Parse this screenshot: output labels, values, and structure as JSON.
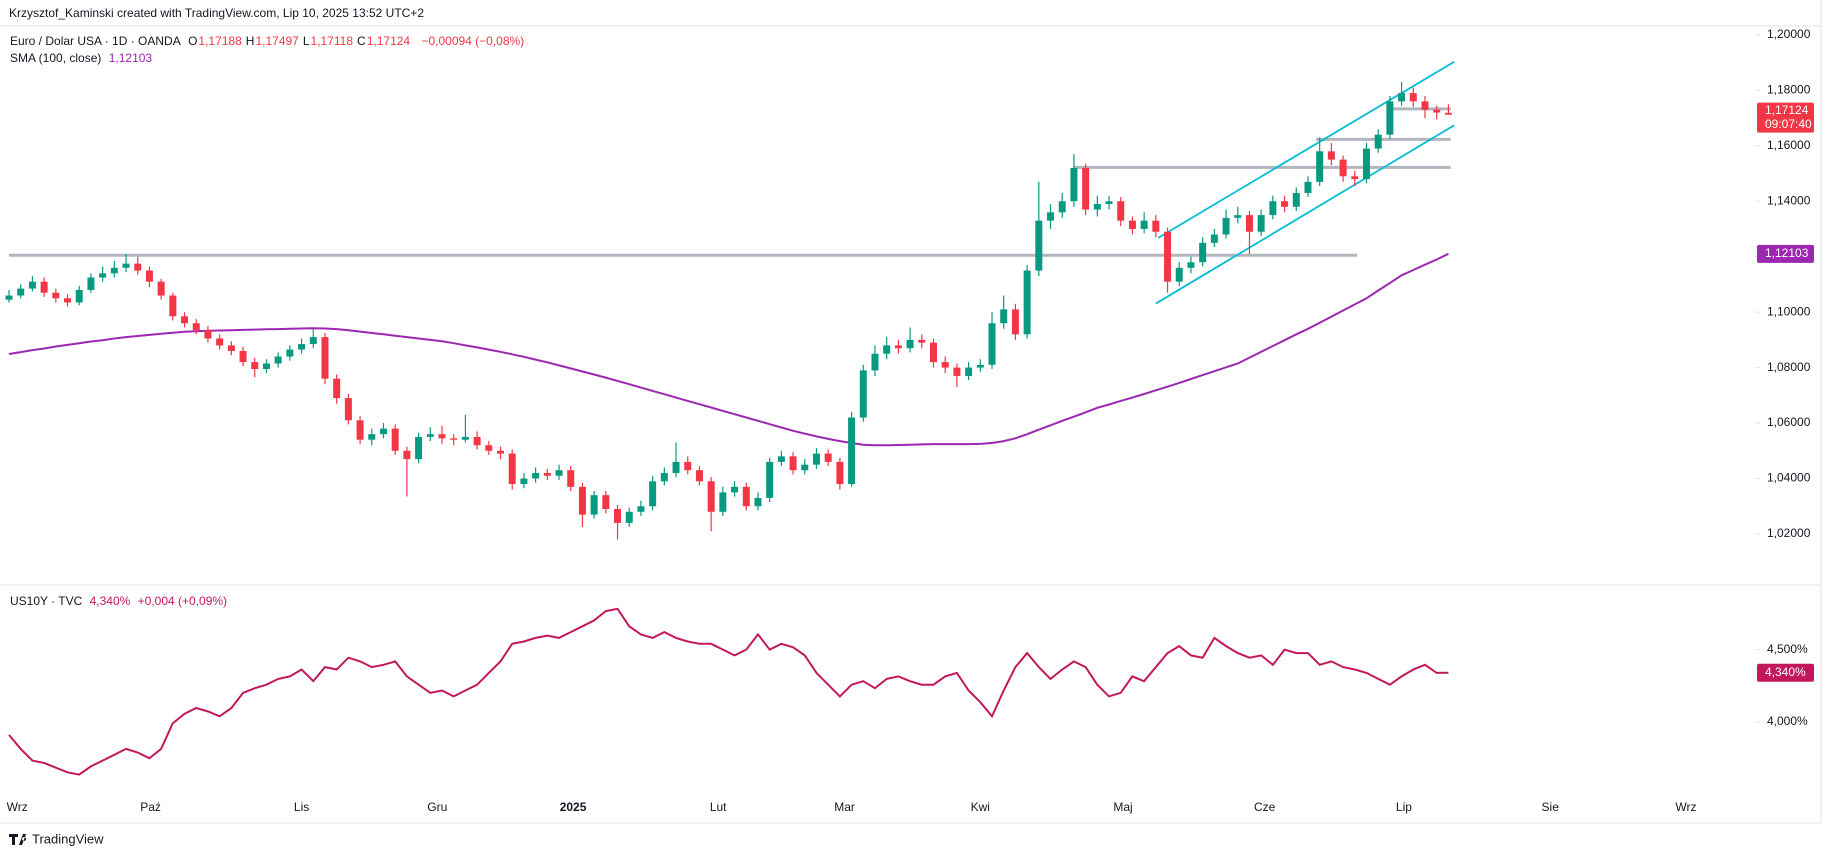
{
  "credit": "Krzysztof_Kaminski created with TradingView.com, Lip 10, 2025 13:52 UTC+2",
  "logo": "TradingView",
  "chart_data": [
    {
      "type": "candlestick",
      "title": "Euro / Dolar USA · 1D · OANDA",
      "ohlc": [
        {
          "key": "O",
          "label": "1,17188"
        },
        {
          "key": "H",
          "label": "1,17497"
        },
        {
          "key": "L",
          "label": "1,17118"
        },
        {
          "key": "C",
          "label": "1,17124"
        }
      ],
      "change": "−0,00094 (−0,08%)",
      "up_color": "#089981",
      "down_color": "#f23645",
      "open": [
        1.1045,
        1.106,
        1.1085,
        1.111,
        1.107,
        1.105,
        1.1035,
        1.108,
        1.1125,
        1.114,
        1.116,
        1.1175,
        1.115,
        1.111,
        1.106,
        1.0985,
        1.096,
        1.0935,
        1.0905,
        1.088,
        1.086,
        1.082,
        1.0795,
        1.0815,
        1.084,
        1.0865,
        1.0885,
        1.091,
        1.076,
        1.069,
        1.061,
        1.054,
        1.056,
        1.058,
        1.05,
        1.047,
        1.055,
        1.056,
        1.0545,
        1.054,
        1.055,
        1.052,
        1.05,
        1.049,
        1.038,
        1.04,
        1.042,
        1.041,
        1.043,
        1.037,
        1.027,
        1.034,
        1.029,
        1.024,
        1.028,
        1.03,
        1.039,
        1.042,
        1.046,
        1.043,
        1.039,
        1.028,
        1.035,
        1.037,
        1.03,
        1.033,
        1.046,
        1.048,
        1.043,
        1.045,
        1.049,
        1.046,
        1.038,
        1.062,
        1.079,
        1.085,
        1.088,
        1.087,
        1.09,
        1.089,
        1.082,
        1.08,
        1.077,
        1.08,
        1.081,
        1.096,
        1.101,
        1.092,
        1.115,
        1.133,
        1.136,
        1.14,
        1.152,
        1.137,
        1.139,
        1.14,
        1.133,
        1.13,
        1.133,
        1.129,
        1.111,
        1.116,
        1.118,
        1.125,
        1.128,
        1.134,
        1.135,
        1.129,
        1.135,
        1.14,
        1.138,
        1.143,
        1.147,
        1.158,
        1.155,
        1.149,
        1.148,
        1.159,
        1.164,
        1.176,
        1.179,
        1.176,
        1.173,
        1.17188
      ],
      "high": [
        1.108,
        1.11,
        1.113,
        1.1125,
        1.1085,
        1.1065,
        1.1095,
        1.114,
        1.1165,
        1.1185,
        1.121,
        1.12,
        1.1165,
        1.112,
        1.107,
        1.1,
        1.0975,
        1.095,
        1.092,
        1.0895,
        1.0875,
        1.0835,
        1.083,
        1.0855,
        1.088,
        1.0905,
        1.094,
        1.0925,
        1.0775,
        1.0705,
        1.0625,
        1.058,
        1.06,
        1.0595,
        1.0515,
        1.0565,
        1.0585,
        1.059,
        1.056,
        1.063,
        1.057,
        1.0535,
        1.0515,
        1.0505,
        1.042,
        1.044,
        1.0435,
        1.045,
        1.0445,
        1.0385,
        1.0355,
        1.0355,
        1.0305,
        1.0295,
        1.032,
        1.041,
        1.044,
        1.053,
        1.048,
        1.0445,
        1.0405,
        1.037,
        1.039,
        1.0385,
        1.035,
        1.0475,
        1.05,
        1.0495,
        1.047,
        1.051,
        1.0505,
        1.0475,
        1.064,
        1.081,
        1.088,
        1.091,
        1.09,
        1.0945,
        1.092,
        1.0905,
        1.084,
        1.0815,
        1.082,
        1.083,
        1.1,
        1.106,
        1.103,
        1.117,
        1.147,
        1.139,
        1.143,
        1.157,
        1.1535,
        1.142,
        1.142,
        1.1415,
        1.1345,
        1.136,
        1.135,
        1.1305,
        1.118,
        1.12,
        1.127,
        1.13,
        1.137,
        1.138,
        1.1365,
        1.137,
        1.142,
        1.142,
        1.145,
        1.149,
        1.163,
        1.161,
        1.1565,
        1.151,
        1.161,
        1.166,
        1.178,
        1.183,
        1.181,
        1.178,
        1.1745,
        1.17497
      ],
      "low": [
        1.1035,
        1.105,
        1.1075,
        1.1055,
        1.1035,
        1.102,
        1.1025,
        1.107,
        1.111,
        1.1125,
        1.1145,
        1.1135,
        1.109,
        1.1045,
        1.097,
        1.0945,
        1.092,
        1.089,
        1.0865,
        1.0845,
        1.0805,
        1.0765,
        1.078,
        1.08,
        1.0825,
        1.085,
        1.087,
        1.074,
        1.067,
        1.0595,
        1.0525,
        1.052,
        1.0545,
        1.0485,
        1.0335,
        1.0455,
        1.0535,
        1.0525,
        1.052,
        1.053,
        1.0505,
        1.0485,
        1.047,
        1.036,
        1.0365,
        1.0385,
        1.0395,
        1.0395,
        1.0355,
        1.0225,
        1.0255,
        1.0275,
        1.018,
        1.0225,
        1.0265,
        1.0285,
        1.0375,
        1.0405,
        1.0415,
        1.0375,
        1.021,
        1.0265,
        1.0335,
        1.0285,
        1.0285,
        1.0315,
        1.0445,
        1.0415,
        1.0415,
        1.0435,
        1.0445,
        1.036,
        1.037,
        1.0605,
        1.077,
        1.083,
        1.085,
        1.0855,
        1.087,
        1.08,
        1.078,
        1.073,
        1.0755,
        1.0785,
        1.0795,
        1.094,
        1.09,
        1.0905,
        1.113,
        1.13,
        1.134,
        1.138,
        1.135,
        1.1345,
        1.137,
        1.131,
        1.128,
        1.1285,
        1.127,
        1.107,
        1.1095,
        1.114,
        1.1165,
        1.1235,
        1.1265,
        1.132,
        1.121,
        1.1275,
        1.1335,
        1.136,
        1.1365,
        1.1415,
        1.1455,
        1.153,
        1.147,
        1.1455,
        1.1465,
        1.1575,
        1.1625,
        1.1745,
        1.174,
        1.17,
        1.1695,
        1.17118
      ],
      "close": [
        1.106,
        1.1085,
        1.111,
        1.107,
        1.105,
        1.1035,
        1.108,
        1.1125,
        1.114,
        1.116,
        1.1175,
        1.115,
        1.111,
        1.106,
        1.0985,
        1.096,
        1.0935,
        1.0905,
        1.088,
        1.086,
        1.082,
        1.0795,
        1.0815,
        1.084,
        1.0865,
        1.0885,
        1.091,
        1.076,
        1.069,
        1.061,
        1.054,
        1.056,
        1.058,
        1.05,
        1.047,
        1.055,
        1.056,
        1.0545,
        1.054,
        1.055,
        1.052,
        1.05,
        1.049,
        1.038,
        1.04,
        1.042,
        1.041,
        1.043,
        1.037,
        1.027,
        1.034,
        1.029,
        1.024,
        1.028,
        1.03,
        1.039,
        1.042,
        1.046,
        1.043,
        1.039,
        1.028,
        1.035,
        1.037,
        1.03,
        1.033,
        1.046,
        1.048,
        1.043,
        1.045,
        1.049,
        1.046,
        1.038,
        1.062,
        1.079,
        1.085,
        1.088,
        1.087,
        1.09,
        1.089,
        1.082,
        1.08,
        1.077,
        1.08,
        1.081,
        1.096,
        1.101,
        1.092,
        1.115,
        1.133,
        1.136,
        1.14,
        1.152,
        1.137,
        1.139,
        1.14,
        1.133,
        1.13,
        1.133,
        1.129,
        1.111,
        1.116,
        1.118,
        1.125,
        1.128,
        1.134,
        1.135,
        1.129,
        1.135,
        1.14,
        1.138,
        1.143,
        1.147,
        1.158,
        1.155,
        1.149,
        1.148,
        1.159,
        1.164,
        1.176,
        1.179,
        1.176,
        1.173,
        1.172,
        1.17124
      ],
      "last_label": "1,17124",
      "countdown": "09:07:40",
      "xlim": [
        -0.77,
        149.2
      ],
      "xticks": [
        {
          "value": 0.7,
          "label": "Wrz"
        },
        {
          "value": 12.1,
          "label": "Paź"
        },
        {
          "value": 25,
          "label": "Lis"
        },
        {
          "value": 36.6,
          "label": "Gru"
        },
        {
          "value": 48.2,
          "label": "2025"
        },
        {
          "value": 60.6,
          "label": "Lut"
        },
        {
          "value": 71.4,
          "label": "Mar"
        },
        {
          "value": 83,
          "label": "Kwi"
        },
        {
          "value": 95.2,
          "label": "Maj"
        },
        {
          "value": 107.3,
          "label": "Cze"
        },
        {
          "value": 119.2,
          "label": "Lip"
        },
        {
          "value": 131.7,
          "label": "Sie"
        },
        {
          "value": 143.3,
          "label": "Wrz"
        }
      ],
      "ylim": [
        1.0016,
        1.2032
      ],
      "yticks": [
        {
          "value": 1.02,
          "label": "1,02000"
        },
        {
          "value": 1.04,
          "label": "1,04000"
        },
        {
          "value": 1.06,
          "label": "1,06000"
        },
        {
          "value": 1.08,
          "label": "1,08000"
        },
        {
          "value": 1.1,
          "label": "1,10000"
        },
        {
          "value": 1.12,
          "label": "1,12000"
        },
        {
          "value": 1.14,
          "label": "1,14000"
        },
        {
          "value": 1.16,
          "label": "1,16000"
        },
        {
          "value": 1.18,
          "label": "1,18000"
        },
        {
          "value": 1.2,
          "label": "1,20000"
        }
      ],
      "sma": {
        "name": "SMA (100, close)",
        "value_label": "1,12103",
        "color": "#9c27b0",
        "values": [
          1.0849,
          1.0856,
          1.0863,
          1.0869,
          1.0876,
          1.0882,
          1.0888,
          1.0894,
          1.0899,
          1.0905,
          1.091,
          1.0914,
          1.0918,
          1.0922,
          1.0926,
          1.0929,
          1.0931,
          1.0933,
          1.0934,
          1.0935,
          1.0936,
          1.0937,
          1.0938,
          1.0939,
          1.094,
          1.0941,
          1.0942,
          1.0941,
          1.0939,
          1.0935,
          1.093,
          1.0925,
          1.092,
          1.0915,
          1.091,
          1.0905,
          1.09,
          1.0895,
          1.0888,
          1.088,
          1.0873,
          1.0865,
          1.0857,
          1.0848,
          1.0839,
          1.0829,
          1.0819,
          1.0808,
          1.0797,
          1.0786,
          1.0775,
          1.0764,
          1.0752,
          1.074,
          1.0728,
          1.0716,
          1.0704,
          1.0692,
          1.068,
          1.0668,
          1.0656,
          1.0644,
          1.0632,
          1.062,
          1.0608,
          1.0596,
          1.0584,
          1.0572,
          1.0562,
          1.0552,
          1.0543,
          1.0535,
          1.0528,
          1.0522,
          1.052,
          1.052,
          1.0521,
          1.0522,
          1.0523,
          1.0524,
          1.0524,
          1.0524,
          1.0524,
          1.0525,
          1.0528,
          1.0535,
          1.0545,
          1.056,
          1.0576,
          1.0592,
          1.0608,
          1.0623,
          1.0639,
          1.0655,
          1.0667,
          1.068,
          1.0692,
          1.0705,
          1.0718,
          1.0731,
          1.0745,
          1.0759,
          1.0773,
          1.0787,
          1.0801,
          1.0815,
          1.0836,
          1.0857,
          1.0878,
          1.0899,
          1.092,
          1.094,
          1.0962,
          1.0984,
          1.1006,
          1.1028,
          1.105,
          1.1078,
          1.1105,
          1.1133,
          1.1152,
          1.1171,
          1.119,
          1.12103
        ]
      },
      "hlines": [
        {
          "value": 1.1205,
          "x": [
            0,
            115.2
          ],
          "color": "#b2b5be"
        },
        {
          "value": 1.1522,
          "x": [
            91,
            123.2
          ],
          "color": "#b2b5be"
        },
        {
          "value": 1.1623,
          "x": [
            111.7,
            123.2
          ],
          "color": "#b2b5be"
        },
        {
          "value": 1.1733,
          "x": [
            118.2,
            123.2
          ],
          "color": "#b2b5be"
        }
      ],
      "channel": {
        "color": "#00bcd4",
        "lines": [
          {
            "x": [
              98.2,
              123.5
            ],
            "y": [
              1.1268,
              1.1903
            ]
          },
          {
            "x": [
              98,
              123.5
            ],
            "y": [
              1.1031,
              1.1674
            ]
          }
        ]
      }
    },
    {
      "type": "line",
      "title": "US10Y · TVC",
      "value_label": "4,340%",
      "change": "+0,004 (+0,09%)",
      "color": "#c2185b",
      "values": [
        3.911,
        3.815,
        3.734,
        3.718,
        3.685,
        3.653,
        3.637,
        3.694,
        3.734,
        3.774,
        3.815,
        3.79,
        3.75,
        3.815,
        3.992,
        4.056,
        4.097,
        4.073,
        4.04,
        4.097,
        4.202,
        4.234,
        4.258,
        4.298,
        4.315,
        4.363,
        4.282,
        4.379,
        4.363,
        4.444,
        4.419,
        4.379,
        4.395,
        4.419,
        4.315,
        4.258,
        4.202,
        4.218,
        4.177,
        4.218,
        4.258,
        4.339,
        4.419,
        4.54,
        4.556,
        4.581,
        4.597,
        4.581,
        4.621,
        4.661,
        4.702,
        4.766,
        4.782,
        4.661,
        4.605,
        4.581,
        4.621,
        4.581,
        4.556,
        4.54,
        4.54,
        4.5,
        4.46,
        4.5,
        4.605,
        4.5,
        4.54,
        4.516,
        4.46,
        4.339,
        4.258,
        4.177,
        4.258,
        4.282,
        4.234,
        4.298,
        4.315,
        4.282,
        4.258,
        4.258,
        4.315,
        4.339,
        4.218,
        4.137,
        4.04,
        4.218,
        4.379,
        4.476,
        4.379,
        4.298,
        4.363,
        4.419,
        4.379,
        4.258,
        4.177,
        4.202,
        4.315,
        4.282,
        4.379,
        4.476,
        4.524,
        4.46,
        4.444,
        4.581,
        4.524,
        4.476,
        4.444,
        4.46,
        4.395,
        4.5,
        4.476,
        4.476,
        4.395,
        4.419,
        4.379,
        4.363,
        4.339,
        4.298,
        4.258,
        4.315,
        4.363,
        4.395,
        4.339,
        4.34
      ],
      "ylim": [
        3.462,
        4.946
      ],
      "yticks": [
        {
          "value": 4,
          "label": "4,000%"
        },
        {
          "value": 4.5,
          "label": "4,500%"
        }
      ]
    }
  ]
}
